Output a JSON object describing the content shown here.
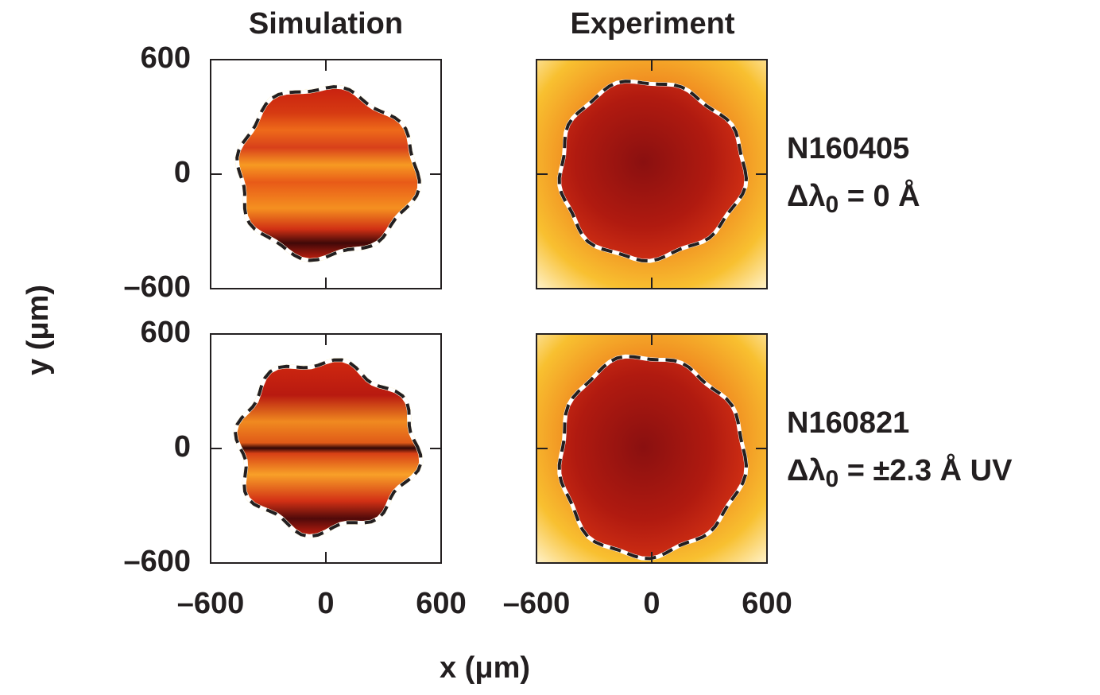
{
  "chart_data": {
    "type": "heatmap",
    "columns": [
      "Simulation",
      "Experiment"
    ],
    "rows": [
      {
        "shot": "N160405",
        "symbol": "Δλ",
        "subscript": "0",
        "condition": " = 0 Å"
      },
      {
        "shot": "N160821",
        "symbol": "Δλ",
        "subscript": "0",
        "condition": " = ±2.3 Å UV"
      }
    ],
    "xlabel": "x (μm)",
    "ylabel": "y (μm)",
    "xlim": [
      -600,
      600
    ],
    "ylim": [
      -600,
      600
    ],
    "xticks": [
      {
        "value": -600,
        "label": "–600"
      },
      0,
      600
    ],
    "yticks": [
      {
        "value": -600,
        "label": "–600"
      },
      0,
      600
    ]
  }
}
